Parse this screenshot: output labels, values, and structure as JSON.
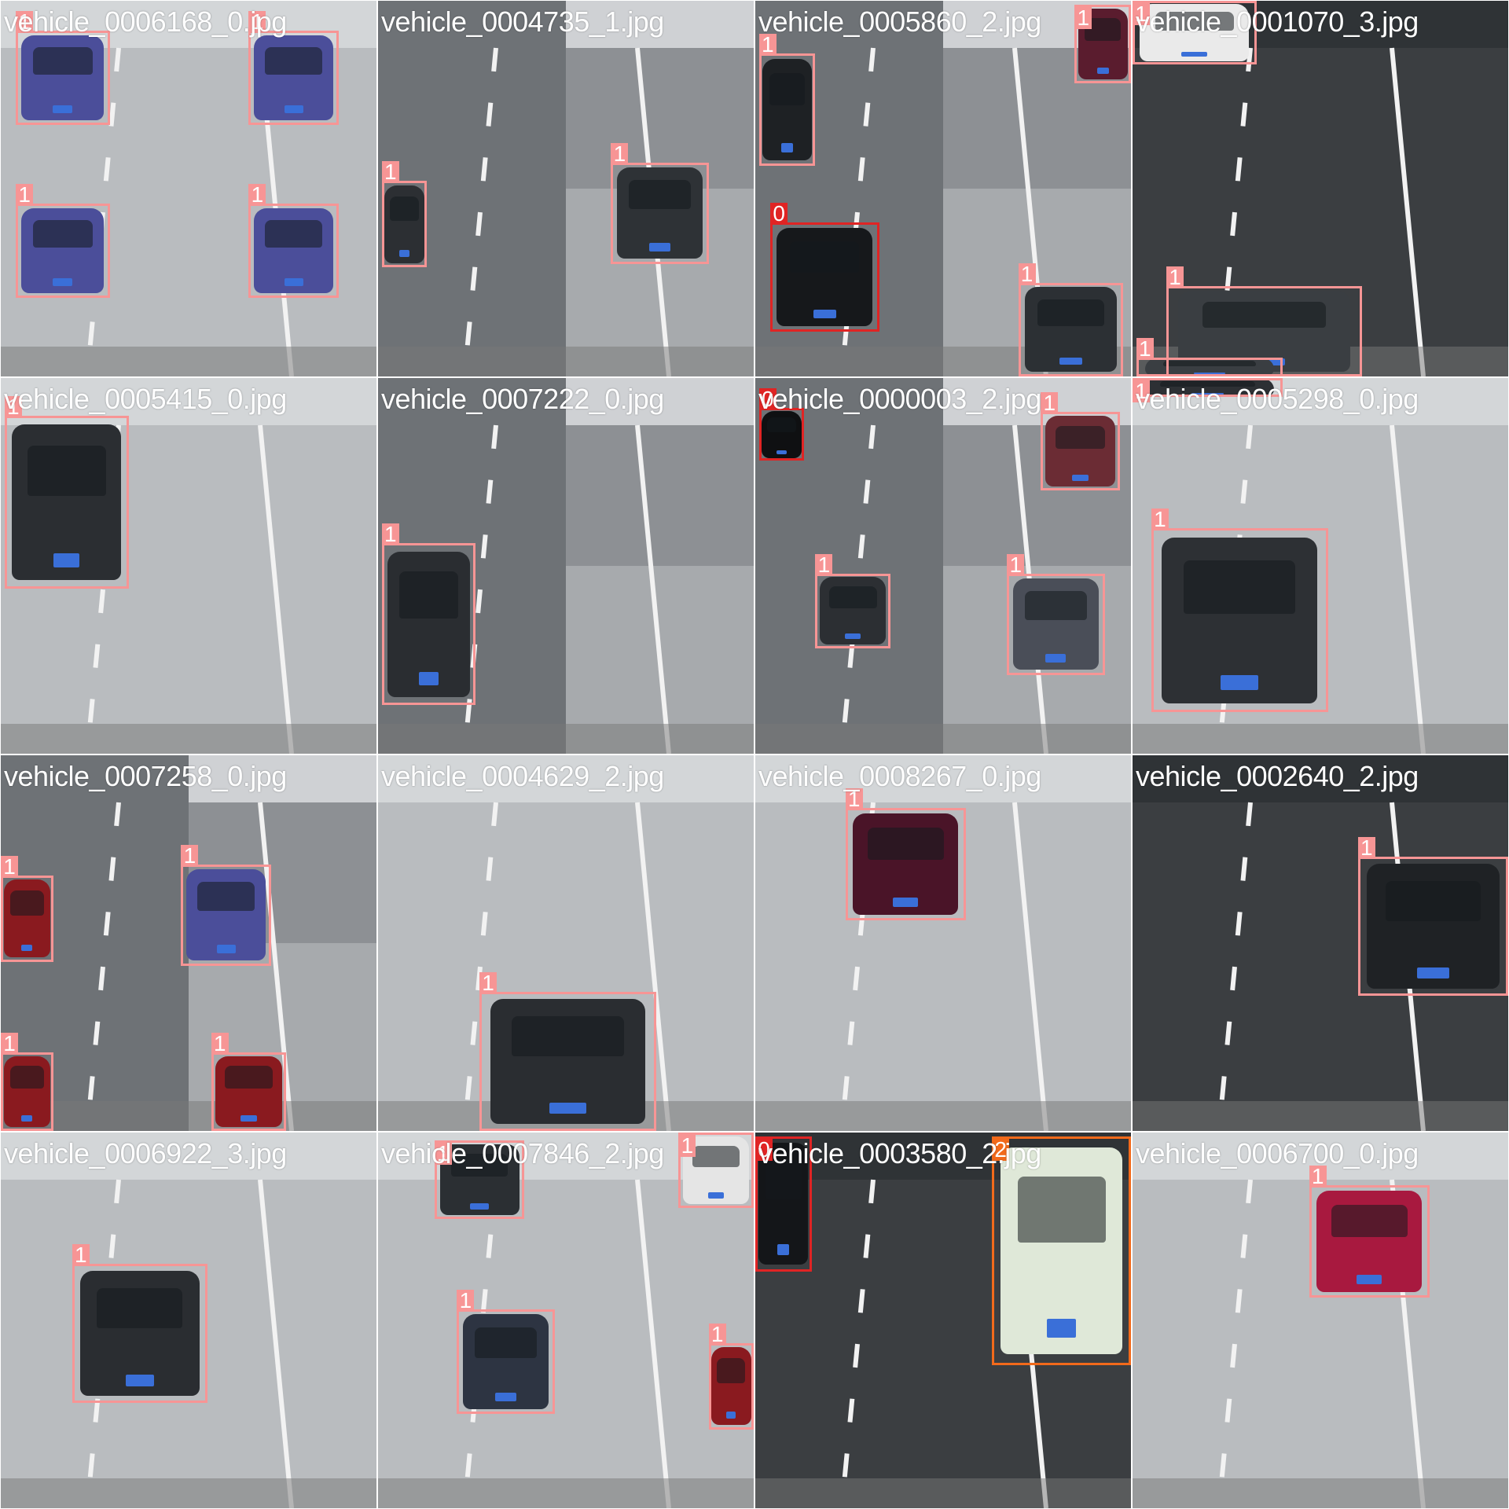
{
  "colors": {
    "class_0": "#e02424",
    "class_1": "#f79595",
    "class_2": "#f26a1b"
  },
  "tiles": [
    {
      "filename": "vehicle_0006168_0.jpg",
      "bg": "light",
      "detections": [
        {
          "cls": "1",
          "b": [
            0.04,
            0.08,
            0.29,
            0.33
          ],
          "car": "#4b4e9a"
        },
        {
          "cls": "1",
          "b": [
            0.66,
            0.08,
            0.9,
            0.33
          ],
          "car": "#4b4e9a"
        },
        {
          "cls": "1",
          "b": [
            0.04,
            0.54,
            0.29,
            0.79
          ],
          "car": "#4b4e9a"
        },
        {
          "cls": "1",
          "b": [
            0.66,
            0.54,
            0.9,
            0.79
          ],
          "car": "#4b4e9a"
        }
      ]
    },
    {
      "filename": "vehicle_0004735_1.jpg",
      "bg": "mixed",
      "detections": [
        {
          "cls": "1",
          "b": [
            0.01,
            0.48,
            0.13,
            0.71
          ],
          "car": "#2c2f33"
        },
        {
          "cls": "1",
          "b": [
            0.62,
            0.43,
            0.88,
            0.7
          ],
          "car": "#2e3236"
        }
      ]
    },
    {
      "filename": "vehicle_0005860_2.jpg",
      "bg": "mixed",
      "detections": [
        {
          "cls": "1",
          "b": [
            0.01,
            0.14,
            0.16,
            0.44
          ],
          "car": "#1e2124"
        },
        {
          "cls": "0",
          "b": [
            0.04,
            0.59,
            0.33,
            0.88
          ],
          "car": "#16181b"
        },
        {
          "cls": "1",
          "b": [
            0.85,
            0.01,
            1.0,
            0.22
          ],
          "car": "#5a1c2e"
        },
        {
          "cls": "1",
          "b": [
            0.7,
            0.75,
            0.98,
            1.0
          ],
          "car": "#2c3034"
        }
      ]
    },
    {
      "filename": "vehicle_0001070_3.jpg",
      "bg": "dark",
      "detections": [
        {
          "cls": "1",
          "b": [
            0.0,
            0.0,
            0.33,
            0.17
          ],
          "car": "#eaeaea"
        },
        {
          "cls": "1",
          "b": [
            0.09,
            0.76,
            0.61,
            1.0
          ],
          "car": "#3a3e42"
        },
        {
          "cls": "1",
          "b": [
            0.01,
            0.95,
            0.4,
            1.0
          ],
          "car": "#3a3e42"
        }
      ]
    },
    {
      "filename": "vehicle_0005415_0.jpg",
      "bg": "light",
      "detections": [
        {
          "cls": "1",
          "b": [
            0.01,
            0.1,
            0.34,
            0.56
          ],
          "car": "#2b2e32"
        }
      ]
    },
    {
      "filename": "vehicle_0007222_0.jpg",
      "bg": "mixed",
      "detections": [
        {
          "cls": "1",
          "b": [
            0.01,
            0.44,
            0.26,
            0.87
          ],
          "car": "#2a2d31"
        }
      ]
    },
    {
      "filename": "vehicle_0000003_2.jpg",
      "bg": "mixed",
      "detections": [
        {
          "cls": "0",
          "b": [
            0.01,
            0.08,
            0.13,
            0.22
          ],
          "car": "#0f1012"
        },
        {
          "cls": "1",
          "b": [
            0.76,
            0.09,
            0.97,
            0.3
          ],
          "car": "#6b2c34"
        },
        {
          "cls": "1",
          "b": [
            0.16,
            0.52,
            0.36,
            0.72
          ],
          "car": "#2c2f33"
        },
        {
          "cls": "1",
          "b": [
            0.67,
            0.52,
            0.93,
            0.79
          ],
          "car": "#4a4e58"
        }
      ]
    },
    {
      "filename": "vehicle_0005298_0.jpg",
      "bg": "light",
      "detections": [
        {
          "cls": "1",
          "b": [
            0.05,
            0.4,
            0.52,
            0.89
          ],
          "car": "#2d3034"
        },
        {
          "cls": "1",
          "b": [
            0.0,
            0.0,
            0.4,
            0.05
          ],
          "car": "#2d3034"
        }
      ]
    },
    {
      "filename": "vehicle_0007258_0.jpg",
      "bg": "mixed",
      "detections": [
        {
          "cls": "1",
          "b": [
            0.0,
            0.32,
            0.14,
            0.55
          ],
          "car": "#8a1a1f"
        },
        {
          "cls": "1",
          "b": [
            0.48,
            0.29,
            0.72,
            0.56
          ],
          "car": "#4b4e9a"
        },
        {
          "cls": "1",
          "b": [
            0.0,
            0.79,
            0.14,
            1.0
          ],
          "car": "#8a1a1f"
        },
        {
          "cls": "1",
          "b": [
            0.56,
            0.79,
            0.76,
            1.0
          ],
          "car": "#8a1a1f"
        }
      ]
    },
    {
      "filename": "vehicle_0004629_2.jpg",
      "bg": "light",
      "detections": [
        {
          "cls": "1",
          "b": [
            0.27,
            0.63,
            0.74,
            1.0
          ],
          "car": "#2a2d31"
        }
      ]
    },
    {
      "filename": "vehicle_0008267_0.jpg",
      "bg": "light",
      "detections": [
        {
          "cls": "1",
          "b": [
            0.24,
            0.14,
            0.56,
            0.44
          ],
          "car": "#4a1428"
        }
      ]
    },
    {
      "filename": "vehicle_0002640_2.jpg",
      "bg": "dark",
      "detections": [
        {
          "cls": "1",
          "b": [
            0.6,
            0.27,
            1.0,
            0.64
          ],
          "car": "#1f2225"
        }
      ]
    },
    {
      "filename": "vehicle_0006922_3.jpg",
      "bg": "light",
      "detections": [
        {
          "cls": "1",
          "b": [
            0.19,
            0.35,
            0.55,
            0.72
          ],
          "car": "#2a2d31"
        }
      ]
    },
    {
      "filename": "vehicle_0007846_2.jpg",
      "bg": "light",
      "detections": [
        {
          "cls": "1",
          "b": [
            0.15,
            0.02,
            0.39,
            0.23
          ],
          "car": "#2b2f33"
        },
        {
          "cls": "1",
          "b": [
            0.8,
            0.0,
            1.0,
            0.2
          ],
          "car": "#e5e5e5"
        },
        {
          "cls": "1",
          "b": [
            0.21,
            0.47,
            0.47,
            0.75
          ],
          "car": "#2d3442"
        },
        {
          "cls": "1",
          "b": [
            0.88,
            0.56,
            1.0,
            0.79
          ],
          "car": "#8a1a1f"
        }
      ]
    },
    {
      "filename": "vehicle_0003580_2.jpg",
      "bg": "dark",
      "detections": [
        {
          "cls": "0",
          "b": [
            0.0,
            0.01,
            0.15,
            0.37
          ],
          "car": "#141619"
        },
        {
          "cls": "2",
          "b": [
            0.63,
            0.01,
            1.0,
            0.62
          ],
          "car": "#dfe8d8"
        }
      ]
    },
    {
      "filename": "vehicle_0006700_0.jpg",
      "bg": "light",
      "detections": [
        {
          "cls": "1",
          "b": [
            0.47,
            0.14,
            0.79,
            0.44
          ],
          "car": "#a8193f"
        }
      ]
    }
  ]
}
